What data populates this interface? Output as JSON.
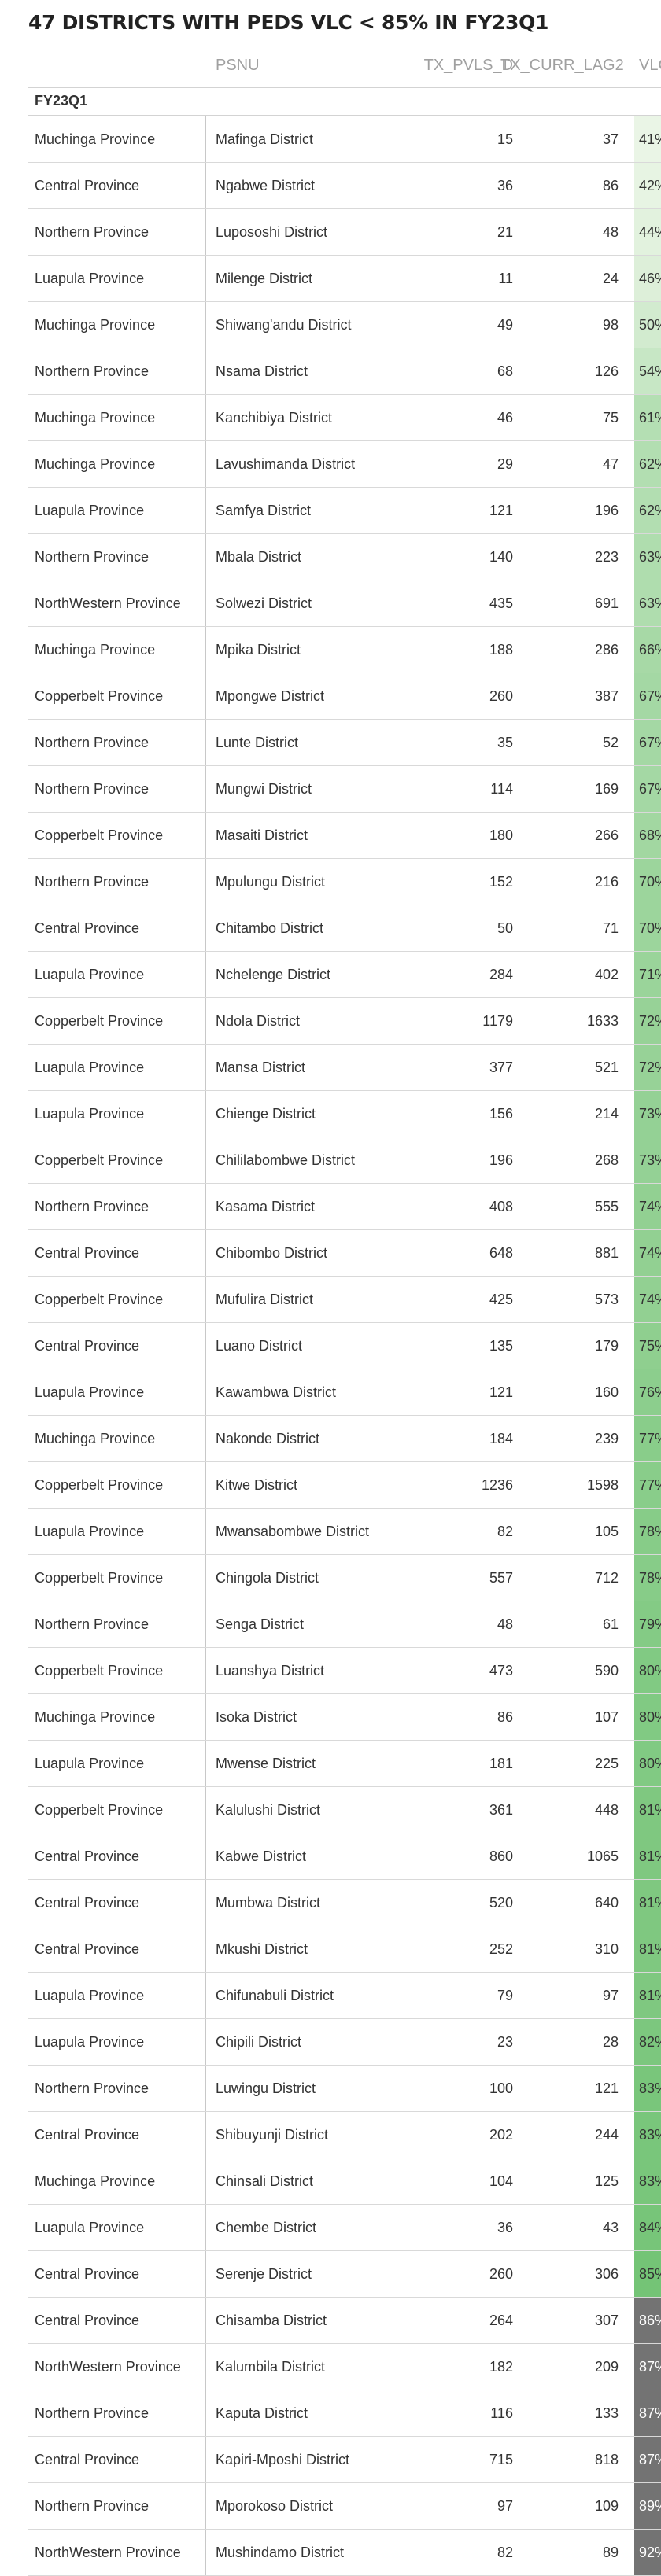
{
  "title": "47 DISTRICTS WITH PEDS VLC < 85% IN FY23Q1",
  "columns": {
    "psnu": "PSNU",
    "tx_pvls_d": "TX_PVLS_D",
    "tx_curr_lag2": "TX_CURR_LAG2",
    "vlc": "VLC"
  },
  "group_label": "FY23Q1",
  "colors": {
    "header_text": "#a0a0a0",
    "row_border": "#d9d9d9",
    "green_scale_low": "#eaf5e6",
    "green_scale_high": "#74c476",
    "above_threshold": "#737373"
  },
  "rows": [
    {
      "province": "Muchinga Province",
      "psnu": "Mafinga District",
      "tx_pvls_d": "15",
      "tx_curr_lag2": "37",
      "vlc": "41%",
      "vlc_value": 0.41
    },
    {
      "province": "Central Province",
      "psnu": "Ngabwe District",
      "tx_pvls_d": "36",
      "tx_curr_lag2": "86",
      "vlc": "42%",
      "vlc_value": 0.42
    },
    {
      "province": "Northern Province",
      "psnu": "Lupososhi District",
      "tx_pvls_d": "21",
      "tx_curr_lag2": "48",
      "vlc": "44%",
      "vlc_value": 0.44
    },
    {
      "province": "Luapula Province",
      "psnu": "Milenge District",
      "tx_pvls_d": "11",
      "tx_curr_lag2": "24",
      "vlc": "46%",
      "vlc_value": 0.46
    },
    {
      "province": "Muchinga Province",
      "psnu": "Shiwang'andu District",
      "tx_pvls_d": "49",
      "tx_curr_lag2": "98",
      "vlc": "50%",
      "vlc_value": 0.5
    },
    {
      "province": "Northern Province",
      "psnu": "Nsama District",
      "tx_pvls_d": "68",
      "tx_curr_lag2": "126",
      "vlc": "54%",
      "vlc_value": 0.54
    },
    {
      "province": "Muchinga Province",
      "psnu": "Kanchibiya District",
      "tx_pvls_d": "46",
      "tx_curr_lag2": "75",
      "vlc": "61%",
      "vlc_value": 0.61
    },
    {
      "province": "Muchinga Province",
      "psnu": "Lavushimanda District",
      "tx_pvls_d": "29",
      "tx_curr_lag2": "47",
      "vlc": "62%",
      "vlc_value": 0.62
    },
    {
      "province": "Luapula Province",
      "psnu": "Samfya District",
      "tx_pvls_d": "121",
      "tx_curr_lag2": "196",
      "vlc": "62%",
      "vlc_value": 0.62
    },
    {
      "province": "Northern Province",
      "psnu": "Mbala District",
      "tx_pvls_d": "140",
      "tx_curr_lag2": "223",
      "vlc": "63%",
      "vlc_value": 0.63
    },
    {
      "province": "NorthWestern Province",
      "psnu": "Solwezi District",
      "tx_pvls_d": "435",
      "tx_curr_lag2": "691",
      "vlc": "63%",
      "vlc_value": 0.63
    },
    {
      "province": "Muchinga Province",
      "psnu": "Mpika District",
      "tx_pvls_d": "188",
      "tx_curr_lag2": "286",
      "vlc": "66%",
      "vlc_value": 0.66
    },
    {
      "province": "Copperbelt Province",
      "psnu": "Mpongwe District",
      "tx_pvls_d": "260",
      "tx_curr_lag2": "387",
      "vlc": "67%",
      "vlc_value": 0.67
    },
    {
      "province": "Northern Province",
      "psnu": "Lunte District",
      "tx_pvls_d": "35",
      "tx_curr_lag2": "52",
      "vlc": "67%",
      "vlc_value": 0.67
    },
    {
      "province": "Northern Province",
      "psnu": "Mungwi District",
      "tx_pvls_d": "114",
      "tx_curr_lag2": "169",
      "vlc": "67%",
      "vlc_value": 0.67
    },
    {
      "province": "Copperbelt Province",
      "psnu": "Masaiti District",
      "tx_pvls_d": "180",
      "tx_curr_lag2": "266",
      "vlc": "68%",
      "vlc_value": 0.68
    },
    {
      "province": "Northern Province",
      "psnu": "Mpulungu District",
      "tx_pvls_d": "152",
      "tx_curr_lag2": "216",
      "vlc": "70%",
      "vlc_value": 0.7
    },
    {
      "province": "Central Province",
      "psnu": "Chitambo District",
      "tx_pvls_d": "50",
      "tx_curr_lag2": "71",
      "vlc": "70%",
      "vlc_value": 0.7
    },
    {
      "province": "Luapula Province",
      "psnu": "Nchelenge District",
      "tx_pvls_d": "284",
      "tx_curr_lag2": "402",
      "vlc": "71%",
      "vlc_value": 0.71
    },
    {
      "province": "Copperbelt Province",
      "psnu": "Ndola District",
      "tx_pvls_d": "1179",
      "tx_curr_lag2": "1633",
      "vlc": "72%",
      "vlc_value": 0.72
    },
    {
      "province": "Luapula Province",
      "psnu": "Mansa District",
      "tx_pvls_d": "377",
      "tx_curr_lag2": "521",
      "vlc": "72%",
      "vlc_value": 0.72
    },
    {
      "province": "Luapula Province",
      "psnu": "Chienge District",
      "tx_pvls_d": "156",
      "tx_curr_lag2": "214",
      "vlc": "73%",
      "vlc_value": 0.73
    },
    {
      "province": "Copperbelt Province",
      "psnu": "Chililabombwe District",
      "tx_pvls_d": "196",
      "tx_curr_lag2": "268",
      "vlc": "73%",
      "vlc_value": 0.73
    },
    {
      "province": "Northern Province",
      "psnu": "Kasama District",
      "tx_pvls_d": "408",
      "tx_curr_lag2": "555",
      "vlc": "74%",
      "vlc_value": 0.74
    },
    {
      "province": "Central Province",
      "psnu": "Chibombo District",
      "tx_pvls_d": "648",
      "tx_curr_lag2": "881",
      "vlc": "74%",
      "vlc_value": 0.74
    },
    {
      "province": "Copperbelt Province",
      "psnu": "Mufulira District",
      "tx_pvls_d": "425",
      "tx_curr_lag2": "573",
      "vlc": "74%",
      "vlc_value": 0.74
    },
    {
      "province": "Central Province",
      "psnu": "Luano District",
      "tx_pvls_d": "135",
      "tx_curr_lag2": "179",
      "vlc": "75%",
      "vlc_value": 0.75
    },
    {
      "province": "Luapula Province",
      "psnu": "Kawambwa District",
      "tx_pvls_d": "121",
      "tx_curr_lag2": "160",
      "vlc": "76%",
      "vlc_value": 0.76
    },
    {
      "province": "Muchinga Province",
      "psnu": "Nakonde District",
      "tx_pvls_d": "184",
      "tx_curr_lag2": "239",
      "vlc": "77%",
      "vlc_value": 0.77
    },
    {
      "province": "Copperbelt Province",
      "psnu": "Kitwe District",
      "tx_pvls_d": "1236",
      "tx_curr_lag2": "1598",
      "vlc": "77%",
      "vlc_value": 0.77
    },
    {
      "province": "Luapula Province",
      "psnu": "Mwansabombwe District",
      "tx_pvls_d": "82",
      "tx_curr_lag2": "105",
      "vlc": "78%",
      "vlc_value": 0.78
    },
    {
      "province": "Copperbelt Province",
      "psnu": "Chingola District",
      "tx_pvls_d": "557",
      "tx_curr_lag2": "712",
      "vlc": "78%",
      "vlc_value": 0.78
    },
    {
      "province": "Northern Province",
      "psnu": "Senga District",
      "tx_pvls_d": "48",
      "tx_curr_lag2": "61",
      "vlc": "79%",
      "vlc_value": 0.79
    },
    {
      "province": "Copperbelt Province",
      "psnu": "Luanshya District",
      "tx_pvls_d": "473",
      "tx_curr_lag2": "590",
      "vlc": "80%",
      "vlc_value": 0.8
    },
    {
      "province": "Muchinga Province",
      "psnu": "Isoka District",
      "tx_pvls_d": "86",
      "tx_curr_lag2": "107",
      "vlc": "80%",
      "vlc_value": 0.8
    },
    {
      "province": "Luapula Province",
      "psnu": "Mwense District",
      "tx_pvls_d": "181",
      "tx_curr_lag2": "225",
      "vlc": "80%",
      "vlc_value": 0.8
    },
    {
      "province": "Copperbelt Province",
      "psnu": "Kalulushi District",
      "tx_pvls_d": "361",
      "tx_curr_lag2": "448",
      "vlc": "81%",
      "vlc_value": 0.81
    },
    {
      "province": "Central Province",
      "psnu": "Kabwe District",
      "tx_pvls_d": "860",
      "tx_curr_lag2": "1065",
      "vlc": "81%",
      "vlc_value": 0.81
    },
    {
      "province": "Central Province",
      "psnu": "Mumbwa District",
      "tx_pvls_d": "520",
      "tx_curr_lag2": "640",
      "vlc": "81%",
      "vlc_value": 0.81
    },
    {
      "province": "Central Province",
      "psnu": "Mkushi District",
      "tx_pvls_d": "252",
      "tx_curr_lag2": "310",
      "vlc": "81%",
      "vlc_value": 0.81
    },
    {
      "province": "Luapula Province",
      "psnu": "Chifunabuli District",
      "tx_pvls_d": "79",
      "tx_curr_lag2": "97",
      "vlc": "81%",
      "vlc_value": 0.81
    },
    {
      "province": "Luapula Province",
      "psnu": "Chipili District",
      "tx_pvls_d": "23",
      "tx_curr_lag2": "28",
      "vlc": "82%",
      "vlc_value": 0.82
    },
    {
      "province": "Northern Province",
      "psnu": "Luwingu District",
      "tx_pvls_d": "100",
      "tx_curr_lag2": "121",
      "vlc": "83%",
      "vlc_value": 0.83
    },
    {
      "province": "Central Province",
      "psnu": "Shibuyunji District",
      "tx_pvls_d": "202",
      "tx_curr_lag2": "244",
      "vlc": "83%",
      "vlc_value": 0.83
    },
    {
      "province": "Muchinga Province",
      "psnu": "Chinsali District",
      "tx_pvls_d": "104",
      "tx_curr_lag2": "125",
      "vlc": "83%",
      "vlc_value": 0.83
    },
    {
      "province": "Luapula Province",
      "psnu": "Chembe District",
      "tx_pvls_d": "36",
      "tx_curr_lag2": "43",
      "vlc": "84%",
      "vlc_value": 0.84
    },
    {
      "province": "Central Province",
      "psnu": "Serenje District",
      "tx_pvls_d": "260",
      "tx_curr_lag2": "306",
      "vlc": "85%",
      "vlc_value": 0.85
    },
    {
      "province": "Central Province",
      "psnu": "Chisamba District",
      "tx_pvls_d": "264",
      "tx_curr_lag2": "307",
      "vlc": "86%",
      "vlc_value": 0.86
    },
    {
      "province": "NorthWestern Province",
      "psnu": "Kalumbila District",
      "tx_pvls_d": "182",
      "tx_curr_lag2": "209",
      "vlc": "87%",
      "vlc_value": 0.87
    },
    {
      "province": "Northern Province",
      "psnu": "Kaputa District",
      "tx_pvls_d": "116",
      "tx_curr_lag2": "133",
      "vlc": "87%",
      "vlc_value": 0.87
    },
    {
      "province": "Central Province",
      "psnu": "Kapiri-Mposhi District",
      "tx_pvls_d": "715",
      "tx_curr_lag2": "818",
      "vlc": "87%",
      "vlc_value": 0.87
    },
    {
      "province": "Northern Province",
      "psnu": "Mporokoso District",
      "tx_pvls_d": "97",
      "tx_curr_lag2": "109",
      "vlc": "89%",
      "vlc_value": 0.89
    },
    {
      "province": "NorthWestern Province",
      "psnu": "Mushindamo District",
      "tx_pvls_d": "82",
      "tx_curr_lag2": "89",
      "vlc": "92%",
      "vlc_value": 0.92
    }
  ]
}
